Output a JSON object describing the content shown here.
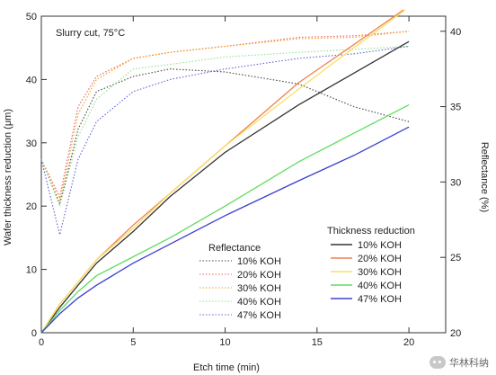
{
  "chart_data": {
    "type": "line",
    "annotation": "Slurry cut, 75°C",
    "xlabel": "Etch time  (min)",
    "ylabel": "Wafer thickness reduction  (μm)",
    "y2label": "Reflectance (%)",
    "xlim": [
      0,
      22
    ],
    "ylim": [
      0,
      50
    ],
    "y2lim": [
      20,
      41
    ],
    "xticks": [
      0,
      5,
      10,
      15,
      20
    ],
    "yticks": [
      0,
      10,
      20,
      30,
      40,
      50
    ],
    "y2ticks": [
      20,
      25,
      30,
      35,
      40
    ],
    "grid": false,
    "thickness_legend": {
      "title": "Thickness reduction",
      "entries": [
        "10% KOH",
        "20% KOH",
        "30% KOH",
        "40% KOH",
        "47% KOH"
      ]
    },
    "reflectance_legend": {
      "title": "Reflectance",
      "entries": [
        "10% KOH",
        "20% KOH",
        "30% KOH",
        "40% KOH",
        "47% KOH"
      ]
    },
    "thickness_series": [
      {
        "name": "10% KOH",
        "color": "#333333",
        "x": [
          0,
          1,
          2,
          3,
          5,
          7,
          10,
          14,
          17,
          20
        ],
        "y": [
          0,
          4,
          7.5,
          11,
          16,
          21.5,
          28.5,
          36,
          41,
          46
        ]
      },
      {
        "name": "20% KOH",
        "color": "#f07f50",
        "x": [
          0,
          1,
          2,
          3,
          5,
          7,
          10,
          14,
          17,
          19.7
        ],
        "y": [
          0,
          4.5,
          8,
          11.5,
          17,
          22,
          29.5,
          39.5,
          45.5,
          51
        ]
      },
      {
        "name": "30% KOH",
        "color": "#f8e060",
        "x": [
          0,
          1,
          2,
          3,
          5,
          7,
          10,
          14,
          17,
          19.8
        ],
        "y": [
          0,
          4.5,
          8,
          11.5,
          16.5,
          22,
          29.5,
          38.5,
          45,
          51
        ]
      },
      {
        "name": "40% KOH",
        "color": "#60dc60",
        "x": [
          0,
          1,
          2,
          3,
          5,
          7,
          10,
          14,
          17,
          20
        ],
        "y": [
          0,
          3.5,
          6.5,
          9,
          12,
          15,
          20,
          27,
          31.5,
          36
        ]
      },
      {
        "name": "47% KOH",
        "color": "#3a40d0",
        "x": [
          0,
          1,
          2,
          3,
          5,
          7,
          10,
          14,
          17,
          20
        ],
        "y": [
          0,
          3,
          5.5,
          7.5,
          11,
          14,
          18.5,
          24,
          28,
          32.5
        ]
      }
    ],
    "reflectance_series": [
      {
        "name": "10% KOH",
        "color": "#444444",
        "x": [
          0,
          1,
          2,
          3,
          5,
          7,
          10,
          14,
          17,
          20
        ],
        "y": [
          31.5,
          28.5,
          33.5,
          36,
          37,
          37.5,
          37.3,
          36.5,
          35,
          34
        ]
      },
      {
        "name": "20% KOH",
        "color": "#f06060",
        "x": [
          0,
          1,
          2,
          3,
          5,
          7,
          10,
          14,
          17,
          20
        ],
        "y": [
          31.5,
          29,
          35,
          37,
          38.2,
          38.6,
          39,
          39.6,
          39.7,
          40
        ]
      },
      {
        "name": "30% KOH",
        "color": "#f0a020",
        "x": [
          0,
          1,
          2,
          3,
          5,
          7,
          10,
          14,
          17,
          20
        ],
        "y": [
          31.5,
          28.7,
          34.5,
          36.8,
          38.2,
          38.6,
          39,
          39.5,
          39.6,
          40
        ]
      },
      {
        "name": "40% KOH",
        "color": "#90e090",
        "x": [
          0,
          1,
          2,
          3,
          5,
          7,
          10,
          14,
          17,
          20
        ],
        "y": [
          31.5,
          28.4,
          33,
          35.5,
          37.5,
          37.8,
          38.3,
          38.6,
          38.8,
          39
        ]
      },
      {
        "name": "47% KOH",
        "color": "#6060d0",
        "x": [
          0,
          1,
          2,
          3,
          5,
          7,
          10,
          14,
          17,
          20
        ],
        "y": [
          31.5,
          26.5,
          31.5,
          34,
          36,
          36.8,
          37.5,
          38.2,
          38.5,
          39
        ]
      }
    ]
  },
  "watermark": {
    "text": "华林科纳",
    "logo_icon": "wechat-icon"
  }
}
